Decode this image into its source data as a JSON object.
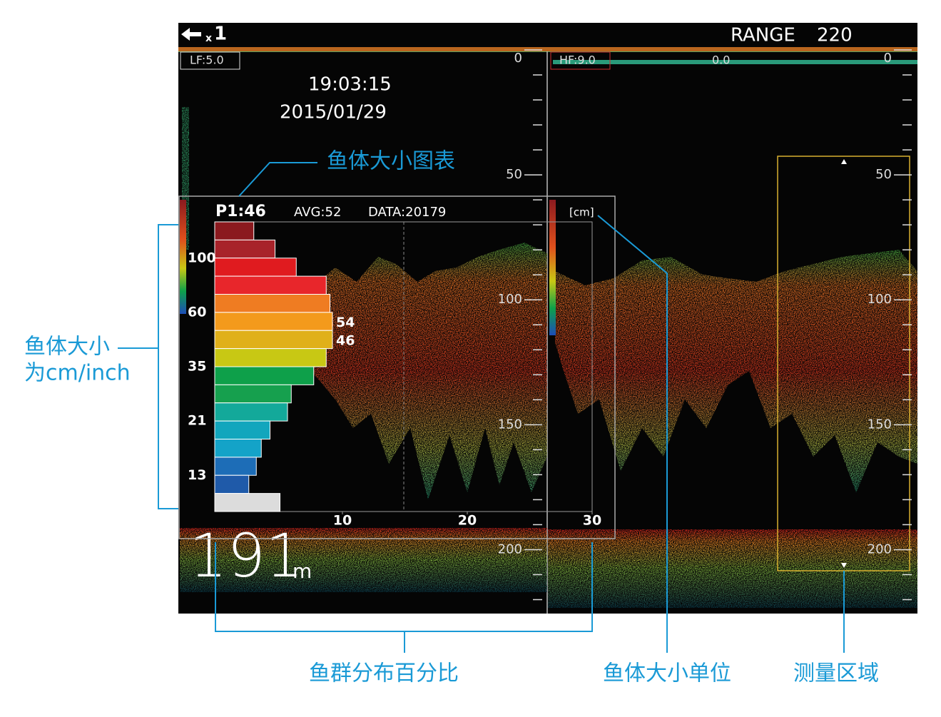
{
  "header": {
    "zoom_prefix": "x",
    "zoom": "1",
    "range_label": "RANGE",
    "range": "220"
  },
  "left_panel": {
    "frequency": "LF:5.0",
    "time": "19:03:15",
    "date": "2015/01/29",
    "depth": "191",
    "depth_unit": "m"
  },
  "right_panel": {
    "frequency": "HF:9.0",
    "offset": "0.0"
  },
  "depth_scale": {
    "ylim": [
      0,
      225
    ],
    "yticks": [
      0,
      50,
      100,
      150,
      200
    ]
  },
  "fish_size_chart": {
    "type": "bar",
    "p1": "P1:46",
    "avg": "AVG:52",
    "data_count": "DATA:20179",
    "unit": "[cm]",
    "size_labels": [
      "100",
      "60",
      "35",
      "21",
      "13"
    ],
    "markers": [
      "54",
      "46"
    ],
    "values": [
      2.9,
      4.6,
      6.3,
      8.7,
      9.0,
      9.2,
      9.2,
      8.7,
      7.7,
      5.9,
      5.6,
      4.2,
      3.5,
      3.1,
      2.5,
      5.0
    ],
    "colors": [
      "#8b1a1f",
      "#a8232a",
      "#e01b1f",
      "#e8262b",
      "#ef7c22",
      "#f39a1c",
      "#e0b01a",
      "#c8c814",
      "#0ea04a",
      "#16a04e",
      "#13a99a",
      "#12a6bd",
      "#14a3c8",
      "#1d6db7",
      "#1f5aa9",
      "#dcdcdc"
    ],
    "xlim": [
      0,
      30
    ],
    "xticks": [
      10,
      20,
      30
    ]
  },
  "annotations": {
    "chart": "鱼体大小图表",
    "size_line1": "鱼体大小",
    "size_line2": "为cm/inch",
    "distribution": "鱼群分布百分比",
    "unit": "鱼体大小单位",
    "area": "测量区域"
  }
}
